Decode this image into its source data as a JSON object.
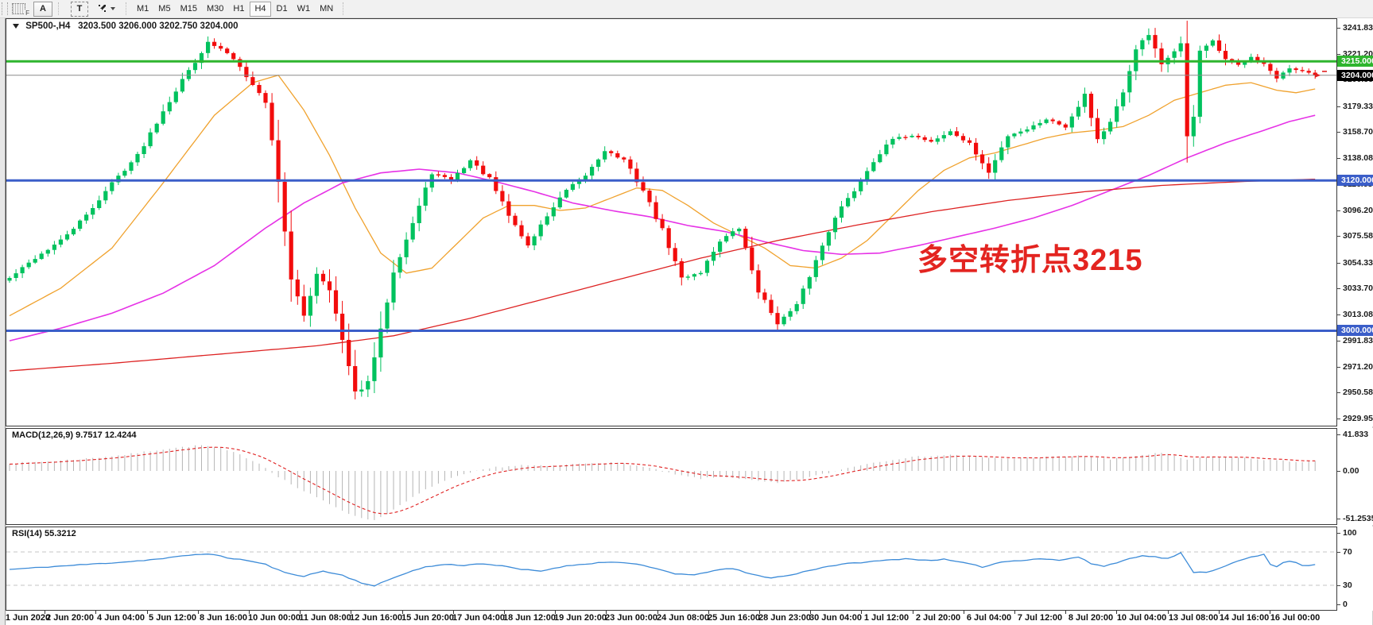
{
  "toolbar": {
    "dock_icon_label": "F",
    "annotation_tool_label": "A",
    "text_tool_label": "T",
    "timeframes": [
      {
        "label": "M1",
        "active": false
      },
      {
        "label": "M5",
        "active": false
      },
      {
        "label": "M15",
        "active": false
      },
      {
        "label": "M30",
        "active": false
      },
      {
        "label": "H1",
        "active": false
      },
      {
        "label": "H4",
        "active": true
      },
      {
        "label": "D1",
        "active": false
      },
      {
        "label": "W1",
        "active": false
      },
      {
        "label": "MN",
        "active": false
      }
    ]
  },
  "chart": {
    "symbol_label": "SP500-,H4",
    "ohlc_label": "3203.500 3206.000 3202.750 3204.000",
    "annotation_text": "多空转折点3215",
    "annotation_color": "#e32420"
  },
  "macd_panel": {
    "label": "MACD(12,26,9) 9.7517 12.4244",
    "axis_ticks": [
      {
        "label": "41.833",
        "value": 41.833
      },
      {
        "label": "0.00",
        "value": 0
      },
      {
        "label": "-51.2535",
        "value": -51.2535
      }
    ]
  },
  "rsi_panel": {
    "label": "RSI(14) 55.3212",
    "axis_ticks": [
      {
        "label": "100",
        "value": 100
      },
      {
        "label": "70",
        "value": 70
      },
      {
        "label": "30",
        "value": 30
      },
      {
        "label": "0",
        "value": 0
      }
    ],
    "level_lines": [
      70,
      30
    ]
  },
  "chart_data": {
    "type": "candlestick",
    "symbol": "SP500-",
    "timeframe": "H4",
    "current_ohlc": {
      "open": 3203.5,
      "high": 3206.0,
      "low": 3202.75,
      "close": 3204.0
    },
    "bars": 205,
    "up_color": "#00c25e",
    "down_color": "#f20c0c",
    "price_ticks": [
      3241.83,
      3221.205,
      3200.58,
      3179.33,
      3158.705,
      3138.08,
      3116.83,
      3096.205,
      3075.58,
      3054.33,
      3033.705,
      3013.08,
      2991.83,
      2971.205,
      2950.58,
      2929.955
    ],
    "price_badges": [
      {
        "label": "3215.000",
        "value": 3215,
        "bg": "#2eb52e"
      },
      {
        "label": "3204.000",
        "value": 3204,
        "bg": "#000000"
      },
      {
        "label": "3120.000",
        "value": 3120,
        "bg": "#3b5ec9"
      },
      {
        "label": "3000.000",
        "value": 3000,
        "bg": "#3b5ec9"
      }
    ],
    "horizontal_lines": [
      {
        "value": 3215,
        "color": "#2eb52e",
        "width": 3
      },
      {
        "value": 3120,
        "color": "#3b5ec9",
        "width": 3
      },
      {
        "value": 3000,
        "color": "#3b5ec9",
        "width": 3
      },
      {
        "value": 3204,
        "color": "#8a8a8a",
        "width": 1
      }
    ],
    "close_anchors": [
      [
        0,
        3042
      ],
      [
        4,
        3058
      ],
      [
        8,
        3072
      ],
      [
        12,
        3092
      ],
      [
        16,
        3118
      ],
      [
        20,
        3140
      ],
      [
        24,
        3176
      ],
      [
        28,
        3208
      ],
      [
        31,
        3230
      ],
      [
        34,
        3222
      ],
      [
        36,
        3212
      ],
      [
        38,
        3196
      ],
      [
        40,
        3183
      ],
      [
        42,
        3120
      ],
      [
        44,
        3040
      ],
      [
        46,
        3012
      ],
      [
        48,
        3046
      ],
      [
        50,
        3034
      ],
      [
        52,
        2992
      ],
      [
        54,
        2950
      ],
      [
        56,
        2958
      ],
      [
        58,
        3000
      ],
      [
        60,
        3048
      ],
      [
        63,
        3086
      ],
      [
        66,
        3126
      ],
      [
        69,
        3120
      ],
      [
        72,
        3136
      ],
      [
        75,
        3121
      ],
      [
        78,
        3092
      ],
      [
        81,
        3068
      ],
      [
        84,
        3092
      ],
      [
        87,
        3112
      ],
      [
        90,
        3124
      ],
      [
        93,
        3144
      ],
      [
        96,
        3136
      ],
      [
        99,
        3112
      ],
      [
        102,
        3080
      ],
      [
        105,
        3042
      ],
      [
        108,
        3047
      ],
      [
        111,
        3072
      ],
      [
        114,
        3082
      ],
      [
        117,
        3032
      ],
      [
        120,
        3006
      ],
      [
        123,
        3020
      ],
      [
        126,
        3056
      ],
      [
        129,
        3092
      ],
      [
        132,
        3112
      ],
      [
        135,
        3136
      ],
      [
        138,
        3153
      ],
      [
        141,
        3156
      ],
      [
        144,
        3151
      ],
      [
        147,
        3159
      ],
      [
        150,
        3149
      ],
      [
        153,
        3126
      ],
      [
        156,
        3156
      ],
      [
        159,
        3161
      ],
      [
        162,
        3169
      ],
      [
        165,
        3163
      ],
      [
        168,
        3189
      ],
      [
        170,
        3153
      ],
      [
        172,
        3166
      ],
      [
        174,
        3189
      ],
      [
        176,
        3226
      ],
      [
        178,
        3236
      ],
      [
        180,
        3212
      ],
      [
        182,
        3224
      ],
      [
        183,
        3229
      ],
      [
        184,
        3154
      ],
      [
        185,
        3172
      ],
      [
        186,
        3224
      ],
      [
        188,
        3231
      ],
      [
        190,
        3216
      ],
      [
        192,
        3212
      ],
      [
        194,
        3219
      ],
      [
        196,
        3213
      ],
      [
        198,
        3201
      ],
      [
        200,
        3209
      ],
      [
        202,
        3207
      ],
      [
        204,
        3204
      ]
    ],
    "moving_averages": [
      {
        "name": "fast-ma",
        "color": "#f0a22e",
        "width": 1.3,
        "anchors": [
          [
            0,
            3012
          ],
          [
            8,
            3034
          ],
          [
            16,
            3066
          ],
          [
            24,
            3118
          ],
          [
            32,
            3172
          ],
          [
            38,
            3198
          ],
          [
            42,
            3204
          ],
          [
            46,
            3176
          ],
          [
            50,
            3140
          ],
          [
            54,
            3098
          ],
          [
            58,
            3062
          ],
          [
            62,
            3046
          ],
          [
            66,
            3050
          ],
          [
            70,
            3070
          ],
          [
            74,
            3090
          ],
          [
            78,
            3100
          ],
          [
            82,
            3100
          ],
          [
            86,
            3096
          ],
          [
            90,
            3098
          ],
          [
            94,
            3106
          ],
          [
            98,
            3114
          ],
          [
            102,
            3112
          ],
          [
            106,
            3100
          ],
          [
            110,
            3086
          ],
          [
            114,
            3076
          ],
          [
            118,
            3066
          ],
          [
            122,
            3052
          ],
          [
            126,
            3050
          ],
          [
            130,
            3058
          ],
          [
            134,
            3072
          ],
          [
            138,
            3092
          ],
          [
            142,
            3112
          ],
          [
            146,
            3128
          ],
          [
            150,
            3138
          ],
          [
            154,
            3142
          ],
          [
            158,
            3148
          ],
          [
            162,
            3154
          ],
          [
            166,
            3158
          ],
          [
            170,
            3160
          ],
          [
            174,
            3163
          ],
          [
            178,
            3172
          ],
          [
            182,
            3184
          ],
          [
            186,
            3190
          ],
          [
            190,
            3196
          ],
          [
            194,
            3198
          ],
          [
            198,
            3192
          ],
          [
            201,
            3190
          ],
          [
            204,
            3193
          ]
        ]
      },
      {
        "name": "medium-ma",
        "color": "#e632e6",
        "width": 1.6,
        "anchors": [
          [
            0,
            2992
          ],
          [
            8,
            3002
          ],
          [
            16,
            3014
          ],
          [
            24,
            3030
          ],
          [
            32,
            3052
          ],
          [
            40,
            3082
          ],
          [
            46,
            3102
          ],
          [
            52,
            3118
          ],
          [
            58,
            3126
          ],
          [
            64,
            3129
          ],
          [
            70,
            3126
          ],
          [
            76,
            3119
          ],
          [
            82,
            3111
          ],
          [
            88,
            3102
          ],
          [
            94,
            3096
          ],
          [
            100,
            3091
          ],
          [
            106,
            3084
          ],
          [
            112,
            3079
          ],
          [
            118,
            3071
          ],
          [
            124,
            3064
          ],
          [
            130,
            3061
          ],
          [
            136,
            3062
          ],
          [
            142,
            3068
          ],
          [
            148,
            3075
          ],
          [
            154,
            3082
          ],
          [
            160,
            3090
          ],
          [
            166,
            3100
          ],
          [
            172,
            3112
          ],
          [
            178,
            3124
          ],
          [
            184,
            3138
          ],
          [
            190,
            3150
          ],
          [
            196,
            3160
          ],
          [
            200,
            3167
          ],
          [
            204,
            3172
          ]
        ]
      },
      {
        "name": "slow-ma",
        "color": "#dd2222",
        "width": 1.3,
        "anchors": [
          [
            0,
            2968
          ],
          [
            16,
            2974
          ],
          [
            32,
            2981
          ],
          [
            48,
            2988
          ],
          [
            60,
            2996
          ],
          [
            72,
            3010
          ],
          [
            84,
            3026
          ],
          [
            96,
            3042
          ],
          [
            108,
            3058
          ],
          [
            120,
            3072
          ],
          [
            132,
            3084
          ],
          [
            144,
            3095
          ],
          [
            156,
            3104
          ],
          [
            168,
            3111
          ],
          [
            180,
            3116
          ],
          [
            192,
            3119
          ],
          [
            204,
            3121
          ]
        ]
      }
    ],
    "macd": {
      "params": "12,26,9",
      "current_main": 9.7517,
      "current_signal": 12.4244,
      "histogram_color": "#b5b5b5",
      "signal_color": "#e02020",
      "main_anchors": [
        [
          0,
          8
        ],
        [
          6,
          10
        ],
        [
          12,
          13
        ],
        [
          18,
          17
        ],
        [
          24,
          23
        ],
        [
          30,
          27
        ],
        [
          33,
          24
        ],
        [
          36,
          17
        ],
        [
          39,
          8
        ],
        [
          42,
          -6
        ],
        [
          45,
          -18
        ],
        [
          48,
          -28
        ],
        [
          51,
          -38
        ],
        [
          54,
          -48
        ],
        [
          57,
          -52
        ],
        [
          60,
          -41
        ],
        [
          63,
          -28
        ],
        [
          66,
          -16
        ],
        [
          69,
          -8
        ],
        [
          72,
          -2
        ],
        [
          76,
          4
        ],
        [
          80,
          6
        ],
        [
          84,
          5
        ],
        [
          88,
          7
        ],
        [
          92,
          9
        ],
        [
          96,
          8
        ],
        [
          100,
          3
        ],
        [
          104,
          -4
        ],
        [
          108,
          -8
        ],
        [
          112,
          -6
        ],
        [
          116,
          -10
        ],
        [
          120,
          -13
        ],
        [
          124,
          -8
        ],
        [
          128,
          -2
        ],
        [
          132,
          5
        ],
        [
          136,
          10
        ],
        [
          140,
          14
        ],
        [
          144,
          16
        ],
        [
          148,
          17
        ],
        [
          152,
          14
        ],
        [
          156,
          13
        ],
        [
          160,
          14
        ],
        [
          164,
          15
        ],
        [
          168,
          16
        ],
        [
          172,
          12
        ],
        [
          176,
          16
        ],
        [
          180,
          19
        ],
        [
          184,
          12
        ],
        [
          188,
          15
        ],
        [
          192,
          14
        ],
        [
          196,
          12
        ],
        [
          200,
          10
        ],
        [
          204,
          9.75
        ]
      ]
    },
    "rsi": {
      "period": 14,
      "current": 55.3212,
      "color": "#3c8bd8",
      "anchors": [
        [
          0,
          49
        ],
        [
          6,
          52
        ],
        [
          12,
          55
        ],
        [
          18,
          58
        ],
        [
          24,
          62
        ],
        [
          28,
          66
        ],
        [
          31,
          68
        ],
        [
          34,
          63
        ],
        [
          37,
          60
        ],
        [
          40,
          55
        ],
        [
          43,
          45
        ],
        [
          46,
          41
        ],
        [
          49,
          47
        ],
        [
          52,
          42
        ],
        [
          55,
          33
        ],
        [
          57,
          29
        ],
        [
          59,
          36
        ],
        [
          62,
          45
        ],
        [
          65,
          52
        ],
        [
          68,
          55
        ],
        [
          71,
          54
        ],
        [
          74,
          56
        ],
        [
          77,
          53
        ],
        [
          80,
          49
        ],
        [
          83,
          47
        ],
        [
          86,
          52
        ],
        [
          89,
          55
        ],
        [
          92,
          57
        ],
        [
          95,
          58
        ],
        [
          98,
          55
        ],
        [
          101,
          50
        ],
        [
          104,
          44
        ],
        [
          107,
          42
        ],
        [
          110,
          48
        ],
        [
          113,
          50
        ],
        [
          116,
          43
        ],
        [
          119,
          39
        ],
        [
          122,
          42
        ],
        [
          125,
          48
        ],
        [
          128,
          53
        ],
        [
          131,
          56
        ],
        [
          134,
          58
        ],
        [
          137,
          60
        ],
        [
          140,
          62
        ],
        [
          143,
          60
        ],
        [
          146,
          61
        ],
        [
          149,
          57
        ],
        [
          152,
          52
        ],
        [
          155,
          58
        ],
        [
          158,
          60
        ],
        [
          161,
          62
        ],
        [
          164,
          60
        ],
        [
          167,
          64
        ],
        [
          169,
          56
        ],
        [
          171,
          53
        ],
        [
          173,
          57
        ],
        [
          175,
          62
        ],
        [
          177,
          66
        ],
        [
          179,
          64
        ],
        [
          181,
          62
        ],
        [
          183,
          69
        ],
        [
          185,
          45
        ],
        [
          187,
          46
        ],
        [
          189,
          50
        ],
        [
          191,
          57
        ],
        [
          193,
          62
        ],
        [
          195,
          65
        ],
        [
          196,
          67
        ],
        [
          197,
          55
        ],
        [
          198,
          52
        ],
        [
          199,
          57
        ],
        [
          200,
          59
        ],
        [
          201,
          57
        ],
        [
          202,
          54
        ],
        [
          203,
          54
        ],
        [
          204,
          55.3
        ]
      ]
    },
    "time_labels": [
      "1 Jun 2020",
      "2 Jun 20:00",
      "4 Jun 04:00",
      "5 Jun 12:00",
      "8 Jun 16:00",
      "10 Jun 00:00",
      "11 Jun 08:00",
      "12 Jun 16:00",
      "15 Jun 20:00",
      "17 Jun 04:00",
      "18 Jun 12:00",
      "19 Jun 20:00",
      "23 Jun 00:00",
      "24 Jun 08:00",
      "25 Jun 16:00",
      "28 Jun 23:00",
      "30 Jun 04:00",
      "1 Jul 12:00",
      "2 Jul 20:00",
      "6 Jul 04:00",
      "7 Jul 12:00",
      "8 Jul 20:00",
      "10 Jul 04:00",
      "13 Jul 08:00",
      "14 Jul 16:00",
      "16 Jul 00:00"
    ],
    "price_axis_top_value": 3249.2,
    "price_axis_bottom_value": 2924.4,
    "macd_axis_range": [
      -56.5,
      45.0
    ],
    "rsi_axis_range": [
      0,
      100
    ]
  }
}
